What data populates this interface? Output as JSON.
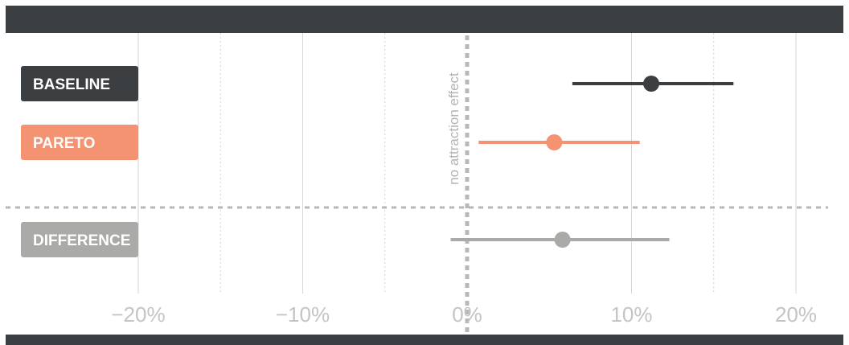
{
  "chart_data": {
    "type": "forest",
    "x_unit": "%",
    "xlim": [
      -25,
      25
    ],
    "x_ticks": [
      {
        "value": -20,
        "label": "−20%"
      },
      {
        "value": -10,
        "label": "−10%"
      },
      {
        "value": 0,
        "label": "0%"
      },
      {
        "value": 10,
        "label": "10%"
      },
      {
        "value": 20,
        "label": "20%"
      }
    ],
    "minor_ticks": [
      -15,
      -5,
      15
    ],
    "reference_line": {
      "value": 0,
      "label": "no attraction effect"
    },
    "series": [
      {
        "name": "BASELINE",
        "estimate": 11.2,
        "low": 6.4,
        "high": 16.2,
        "color": "#3c3f42"
      },
      {
        "name": "PARETO",
        "estimate": 5.3,
        "low": 0.7,
        "high": 10.5,
        "color": "#f49372"
      },
      {
        "name": "DIFFERENCE",
        "estimate": 5.8,
        "low": -1.0,
        "high": 12.3,
        "color": "#aaaaa8"
      }
    ],
    "separator_after_index": 1,
    "colors": {
      "frame": "#3c3f42",
      "grid": "#d6d6d6",
      "reference": "#b8b8b8",
      "tick_text": "#c4c4c4"
    }
  }
}
